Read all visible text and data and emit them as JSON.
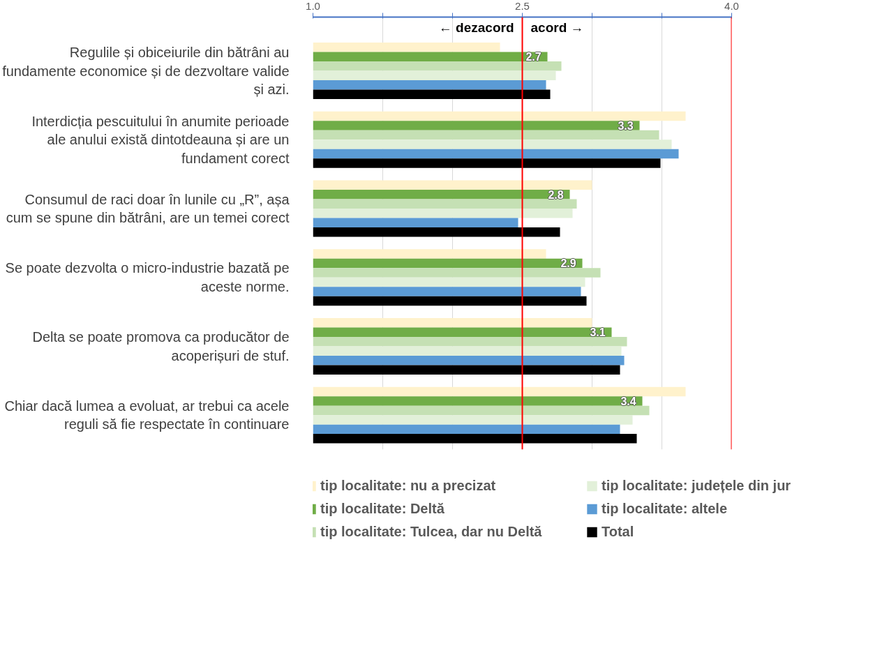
{
  "chart_data": {
    "type": "bar",
    "orientation": "horizontal",
    "categories": [
      "Regulile și obiceiurile din bătrâni au fundamente economice și de dezvoltare valide și azi.",
      "Interdicția pescuitului în anumite perioade ale anului există dintotdeauna și are un fundament corect",
      "Consumul de raci doar în lunile cu „R”, așa cum se spune din bătrâni, are un temei corect",
      "Se poate dezvolta o micro-industrie bazată pe aceste norme.",
      "Delta se poate promova ca producător de acoperișuri de stuf.",
      "Chiar dacă lumea a evoluat, ar trebui ca acele reguli să fie respectate în continuare"
    ],
    "series": [
      {
        "name": "tip localitate: nu a precizat",
        "color": "#fff2cc",
        "values": [
          2.34,
          3.67,
          3.0,
          2.67,
          3.0,
          3.67
        ]
      },
      {
        "name": "tip localitate: Deltă",
        "color": "#70ad47",
        "values": [
          2.68,
          3.34,
          2.84,
          2.93,
          3.14,
          3.36
        ],
        "value_labels": [
          "2.7",
          "3.3",
          "2.8",
          "2.9",
          "3.1",
          "3.4"
        ]
      },
      {
        "name": "tip localitate: Tulcea, dar nu Deltă",
        "color": "#c5e0b4",
        "values": [
          2.78,
          3.48,
          2.89,
          3.06,
          3.25,
          3.41
        ]
      },
      {
        "name": "tip localitate: județele din jur",
        "color": "#e2f0d9",
        "values": [
          2.74,
          3.57,
          2.86,
          2.95,
          3.21,
          3.29
        ]
      },
      {
        "name": "tip localitate: altele",
        "color": "#5b9bd5",
        "values": [
          2.67,
          3.62,
          2.47,
          2.92,
          3.23,
          3.2
        ]
      },
      {
        "name": "Total",
        "color": "#000000",
        "values": [
          2.7,
          3.49,
          2.77,
          2.96,
          3.2,
          3.32
        ]
      }
    ],
    "xlim": [
      1,
      4
    ],
    "xticks": [
      {
        "value": 1,
        "label": "1.0"
      },
      {
        "value": 1.5,
        "label": null
      },
      {
        "value": 2,
        "label": null
      },
      {
        "value": 2.5,
        "label": "2.5"
      },
      {
        "value": 3,
        "label": null
      },
      {
        "value": 3.5,
        "label": null
      },
      {
        "value": 4,
        "label": "4.0"
      }
    ],
    "grid": "x",
    "ref_lines": [
      {
        "axis": "x",
        "value": 2.5,
        "label": null,
        "color": "#ff0000"
      },
      {
        "axis": "x",
        "value": 4,
        "label": null,
        "color": "#ff0000"
      }
    ],
    "annotations": [
      "← dezacord",
      "acord →"
    ],
    "legend": "bottom"
  }
}
